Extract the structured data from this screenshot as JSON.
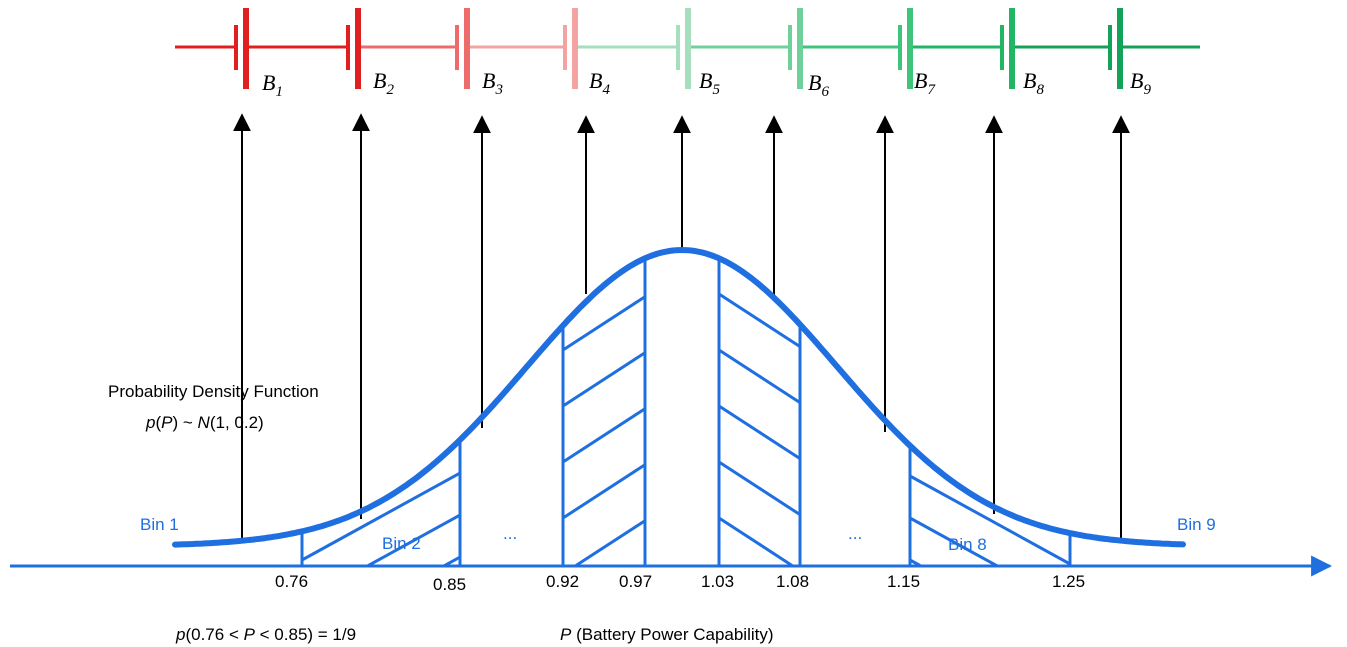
{
  "batteries": [
    {
      "letter": "B",
      "sub": "1",
      "color": "#e02020"
    },
    {
      "letter": "B",
      "sub": "2",
      "color": "#e02020"
    },
    {
      "letter": "B",
      "sub": "3",
      "color": "#ee6b6b"
    },
    {
      "letter": "B",
      "sub": "4",
      "color": "#f4a3a3"
    },
    {
      "letter": "B",
      "sub": "5",
      "color": "#a5dfbd"
    },
    {
      "letter": "B",
      "sub": "6",
      "color": "#6ed09a"
    },
    {
      "letter": "B",
      "sub": "7",
      "color": "#3fc57b"
    },
    {
      "letter": "B",
      "sub": "8",
      "color": "#22b566"
    },
    {
      "letter": "B",
      "sub": "9",
      "color": "#13a257"
    }
  ],
  "pdf_label": {
    "line1": "Probability Density Function",
    "p": "p",
    "P": "P",
    "tilde": "~",
    "N": "N",
    "params": "(1, 0.2)"
  },
  "bins": {
    "first": "Bin 1",
    "second": "Bin 2",
    "eighth": "Bin 8",
    "last": "Bin 9",
    "ellipsis": "..."
  },
  "ticks": [
    "0.76",
    "0.85",
    "0.92",
    "0.97",
    "1.03",
    "1.08",
    "1.15",
    "1.25"
  ],
  "prob_label": {
    "p": "p",
    "open": "(0.76 < ",
    "P": "P",
    "close": " < 0.85) = 1/9"
  },
  "axis_label": {
    "P": "P",
    "rest": " (Battery Power Capability)"
  },
  "colors": {
    "curve": "#1f6fe0",
    "axis": "#1f6fe0",
    "arrows": "#000000"
  }
}
